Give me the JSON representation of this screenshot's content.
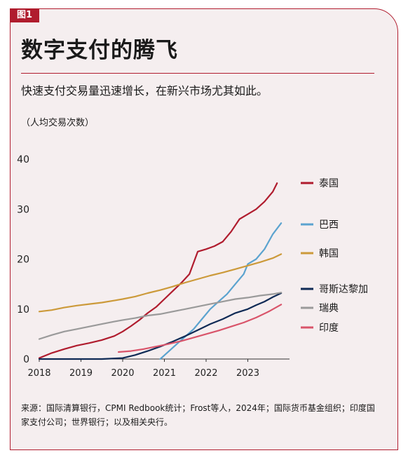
{
  "figure_tag": "图1",
  "title": "数字支付的腾飞",
  "subtitle": "快速支付交易量迅速增长，在新兴市场尤其如此。",
  "unit_label": "（人均交易次数）",
  "source": "来源：国际清算银行，CPMI Redbook统计；Frost等人，2024年；国际货币基金组织；印度国家支付公司；世界银行；以及相关央行。",
  "colors": {
    "frame": "#b01c2e",
    "background": "#f5eeef"
  },
  "chart_data": {
    "type": "line",
    "title": "数字支付的腾飞",
    "ylabel": "（人均交易次数）",
    "xlabel": "",
    "x_ticks": [
      "2018",
      "2019",
      "2020",
      "2021",
      "2022",
      "2023"
    ],
    "y_ticks": [
      0,
      10,
      20,
      30,
      40
    ],
    "xlim": [
      2018.0,
      2024.0
    ],
    "ylim": [
      0,
      40
    ],
    "grid": false,
    "legend": "right",
    "series": [
      {
        "name": "泰国",
        "color": "#b01c2e",
        "points": [
          [
            2018.0,
            0.2
          ],
          [
            2018.3,
            1.2
          ],
          [
            2018.6,
            2.0
          ],
          [
            2018.9,
            2.7
          ],
          [
            2019.2,
            3.2
          ],
          [
            2019.5,
            3.8
          ],
          [
            2019.8,
            4.6
          ],
          [
            2020.0,
            5.5
          ],
          [
            2020.2,
            6.6
          ],
          [
            2020.4,
            7.8
          ],
          [
            2020.6,
            9.2
          ],
          [
            2020.8,
            10.4
          ],
          [
            2021.0,
            12.0
          ],
          [
            2021.2,
            13.6
          ],
          [
            2021.4,
            15.2
          ],
          [
            2021.6,
            17.0
          ],
          [
            2021.8,
            21.5
          ],
          [
            2022.0,
            22.0
          ],
          [
            2022.2,
            22.6
          ],
          [
            2022.4,
            23.5
          ],
          [
            2022.6,
            25.5
          ],
          [
            2022.8,
            28.0
          ],
          [
            2023.0,
            29.0
          ],
          [
            2023.2,
            30.0
          ],
          [
            2023.4,
            31.5
          ],
          [
            2023.6,
            33.5
          ],
          [
            2023.7,
            35.2
          ]
        ]
      },
      {
        "name": "巴西",
        "color": "#5ba3cf",
        "points": [
          [
            2020.9,
            0.0
          ],
          [
            2021.1,
            1.5
          ],
          [
            2021.3,
            3.0
          ],
          [
            2021.5,
            4.5
          ],
          [
            2021.7,
            6.0
          ],
          [
            2021.9,
            8.0
          ],
          [
            2022.1,
            10.0
          ],
          [
            2022.3,
            11.5
          ],
          [
            2022.5,
            13.0
          ],
          [
            2022.7,
            15.0
          ],
          [
            2022.9,
            17.0
          ],
          [
            2023.0,
            19.0
          ],
          [
            2023.2,
            20.0
          ],
          [
            2023.4,
            22.0
          ],
          [
            2023.6,
            25.0
          ],
          [
            2023.8,
            27.2
          ]
        ]
      },
      {
        "name": "韩国",
        "color": "#cc9a3a",
        "points": [
          [
            2018.0,
            9.5
          ],
          [
            2018.3,
            9.8
          ],
          [
            2018.6,
            10.3
          ],
          [
            2018.9,
            10.7
          ],
          [
            2019.2,
            11.0
          ],
          [
            2019.5,
            11.3
          ],
          [
            2019.8,
            11.7
          ],
          [
            2020.0,
            12.0
          ],
          [
            2020.3,
            12.5
          ],
          [
            2020.6,
            13.2
          ],
          [
            2020.9,
            13.8
          ],
          [
            2021.2,
            14.5
          ],
          [
            2021.5,
            15.3
          ],
          [
            2021.8,
            16.0
          ],
          [
            2022.1,
            16.7
          ],
          [
            2022.4,
            17.3
          ],
          [
            2022.7,
            18.0
          ],
          [
            2023.0,
            18.7
          ],
          [
            2023.3,
            19.4
          ],
          [
            2023.6,
            20.2
          ],
          [
            2023.8,
            21.0
          ]
        ]
      },
      {
        "name": "哥斯达黎加",
        "color": "#0f2a55",
        "points": [
          [
            2018.0,
            0.0
          ],
          [
            2019.5,
            0.0
          ],
          [
            2020.0,
            0.2
          ],
          [
            2020.3,
            0.8
          ],
          [
            2020.6,
            1.6
          ],
          [
            2020.9,
            2.5
          ],
          [
            2021.2,
            3.5
          ],
          [
            2021.5,
            4.6
          ],
          [
            2021.8,
            5.8
          ],
          [
            2022.1,
            7.0
          ],
          [
            2022.4,
            8.0
          ],
          [
            2022.7,
            9.2
          ],
          [
            2023.0,
            10.0
          ],
          [
            2023.2,
            10.8
          ],
          [
            2023.4,
            11.5
          ],
          [
            2023.6,
            12.4
          ],
          [
            2023.8,
            13.2
          ]
        ]
      },
      {
        "name": "瑞典",
        "color": "#9a9a9a",
        "points": [
          [
            2018.0,
            4.0
          ],
          [
            2018.3,
            4.8
          ],
          [
            2018.6,
            5.5
          ],
          [
            2018.9,
            6.0
          ],
          [
            2019.2,
            6.5
          ],
          [
            2019.5,
            7.0
          ],
          [
            2019.8,
            7.5
          ],
          [
            2020.0,
            7.8
          ],
          [
            2020.3,
            8.2
          ],
          [
            2020.6,
            8.7
          ],
          [
            2020.9,
            9.0
          ],
          [
            2021.2,
            9.5
          ],
          [
            2021.5,
            10.0
          ],
          [
            2021.8,
            10.5
          ],
          [
            2022.1,
            11.0
          ],
          [
            2022.4,
            11.5
          ],
          [
            2022.7,
            12.0
          ],
          [
            2023.0,
            12.3
          ],
          [
            2023.3,
            12.7
          ],
          [
            2023.6,
            13.0
          ],
          [
            2023.8,
            13.3
          ]
        ]
      },
      {
        "name": "印度",
        "color": "#d9546a",
        "points": [
          [
            2019.9,
            1.4
          ],
          [
            2020.2,
            1.6
          ],
          [
            2020.5,
            2.0
          ],
          [
            2020.8,
            2.5
          ],
          [
            2021.1,
            3.0
          ],
          [
            2021.4,
            3.6
          ],
          [
            2021.7,
            4.3
          ],
          [
            2022.0,
            5.0
          ],
          [
            2022.3,
            5.7
          ],
          [
            2022.6,
            6.5
          ],
          [
            2022.9,
            7.3
          ],
          [
            2023.2,
            8.3
          ],
          [
            2023.5,
            9.5
          ],
          [
            2023.8,
            10.9
          ]
        ]
      }
    ]
  }
}
